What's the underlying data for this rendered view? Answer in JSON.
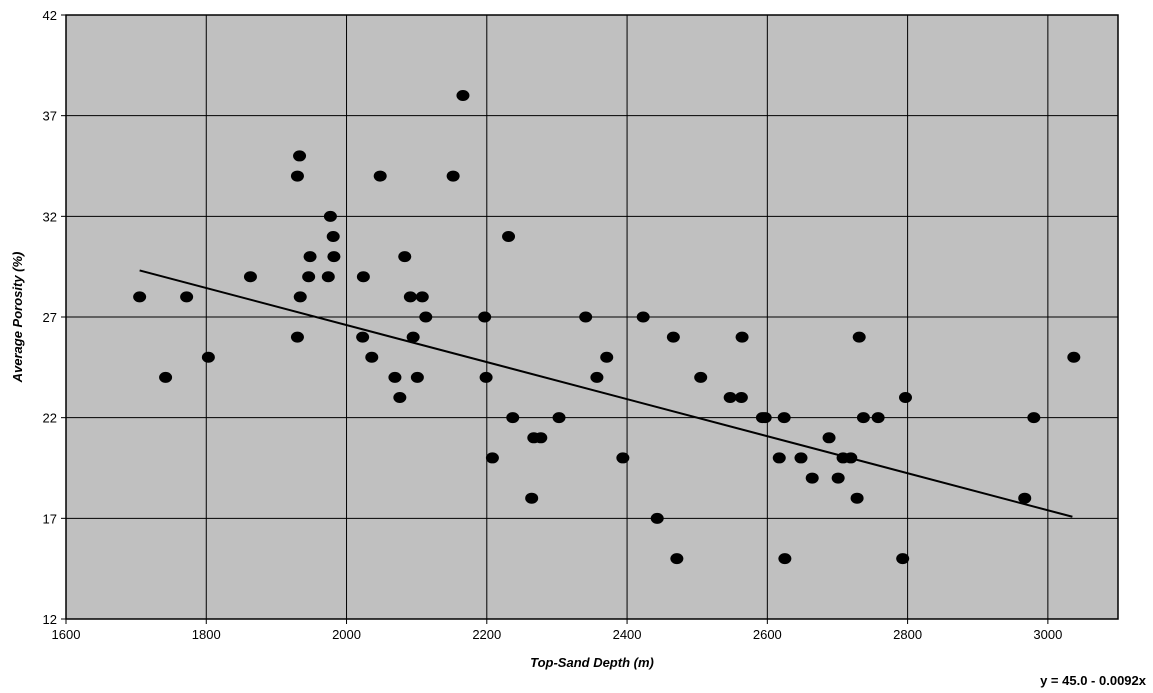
{
  "chart_data": {
    "type": "scatter",
    "title": "",
    "xlabel": "Top-Sand Depth (m)",
    "ylabel": "Average Porosity (%)",
    "xlim": [
      1600,
      3100
    ],
    "ylim": [
      12,
      42
    ],
    "x_ticks": [
      1600,
      1800,
      2000,
      2200,
      2400,
      2600,
      2800,
      3000
    ],
    "y_ticks": [
      12,
      17,
      22,
      27,
      32,
      37,
      42
    ],
    "grid": true,
    "plot_background": "#c0c0c0",
    "marker_color": "#000000",
    "trendline": {
      "equation": "y = 45.0 - 0.0092x",
      "intercept": 45.0,
      "slope": -0.0092,
      "x_range": [
        1705,
        3035
      ]
    },
    "series": [
      {
        "points": [
          [
            1705,
            28
          ],
          [
            1742,
            24
          ],
          [
            1772,
            28
          ],
          [
            1803,
            25
          ],
          [
            1863,
            29
          ],
          [
            1930,
            34
          ],
          [
            1933,
            35
          ],
          [
            1930,
            26
          ],
          [
            1934,
            28
          ],
          [
            1946,
            29
          ],
          [
            1948,
            30
          ],
          [
            1974,
            29
          ],
          [
            1977,
            32
          ],
          [
            1981,
            31
          ],
          [
            1982,
            30
          ],
          [
            2023,
            26
          ],
          [
            2024,
            29
          ],
          [
            2036,
            25
          ],
          [
            2048,
            34
          ],
          [
            2069,
            24
          ],
          [
            2076,
            23
          ],
          [
            2083,
            30
          ],
          [
            2091,
            28
          ],
          [
            2095,
            26
          ],
          [
            2101,
            24
          ],
          [
            2108,
            28
          ],
          [
            2113,
            27
          ],
          [
            2152,
            34
          ],
          [
            2166,
            38
          ],
          [
            2197,
            27
          ],
          [
            2199,
            24
          ],
          [
            2208,
            20
          ],
          [
            2231,
            31
          ],
          [
            2237,
            22
          ],
          [
            2264,
            18
          ],
          [
            2267,
            21
          ],
          [
            2277,
            21
          ],
          [
            2303,
            22
          ],
          [
            2341,
            27
          ],
          [
            2357,
            24
          ],
          [
            2371,
            25
          ],
          [
            2394,
            20
          ],
          [
            2423,
            27
          ],
          [
            2443,
            17
          ],
          [
            2466,
            26
          ],
          [
            2471,
            15
          ],
          [
            2505,
            24
          ],
          [
            2547,
            23
          ],
          [
            2563,
            23
          ],
          [
            2564,
            26
          ],
          [
            2593,
            22
          ],
          [
            2597,
            22
          ],
          [
            2617,
            20
          ],
          [
            2624,
            22
          ],
          [
            2625,
            15
          ],
          [
            2648,
            20
          ],
          [
            2664,
            19
          ],
          [
            2688,
            21
          ],
          [
            2701,
            19
          ],
          [
            2708,
            20
          ],
          [
            2719,
            20
          ],
          [
            2728,
            18
          ],
          [
            2731,
            26
          ],
          [
            2737,
            22
          ],
          [
            2758,
            22
          ],
          [
            2793,
            15
          ],
          [
            2797,
            23
          ],
          [
            2967,
            18
          ],
          [
            2980,
            22
          ],
          [
            3037,
            25
          ]
        ]
      }
    ]
  }
}
